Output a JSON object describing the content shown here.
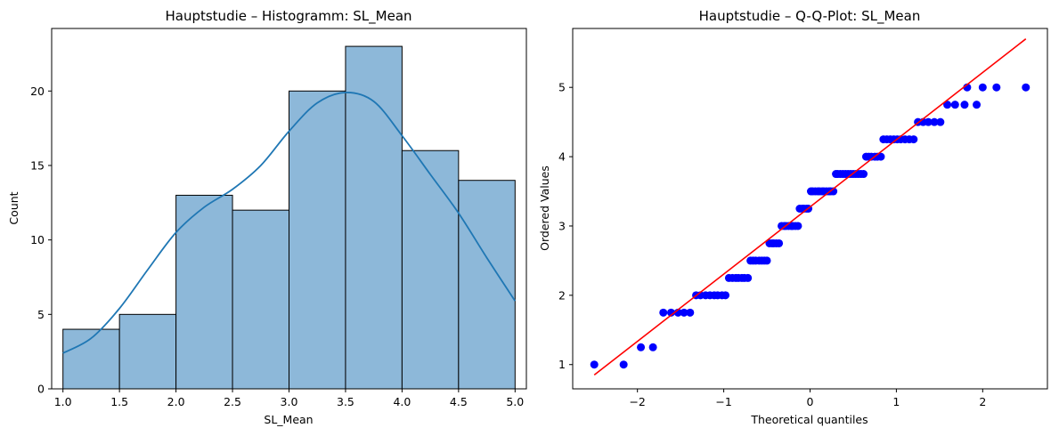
{
  "chart_data": [
    {
      "type": "bar",
      "title": "Hauptstudie – Histogramm: SL_Mean",
      "xlabel": "SL_Mean",
      "ylabel": "Count",
      "xlim": [
        0.9,
        5.1
      ],
      "ylim": [
        0,
        24.2
      ],
      "x_ticks": [
        1.0,
        1.5,
        2.0,
        2.5,
        3.0,
        3.5,
        4.0,
        4.5,
        5.0
      ],
      "x_tick_labels": [
        "1.0",
        "1.5",
        "2.0",
        "2.5",
        "3.0",
        "3.5",
        "4.0",
        "4.5",
        "5.0"
      ],
      "y_ticks": [
        0,
        5,
        10,
        15,
        20
      ],
      "y_tick_labels": [
        "0",
        "5",
        "10",
        "15",
        "20"
      ],
      "bins": [
        {
          "x0": 1.0,
          "x1": 1.5,
          "count": 4
        },
        {
          "x0": 1.5,
          "x1": 2.0,
          "count": 5
        },
        {
          "x0": 2.0,
          "x1": 2.5,
          "count": 13
        },
        {
          "x0": 2.5,
          "x1": 3.0,
          "count": 12
        },
        {
          "x0": 3.0,
          "x1": 3.5,
          "count": 20
        },
        {
          "x0": 3.5,
          "x1": 4.0,
          "count": 23
        },
        {
          "x0": 4.0,
          "x1": 4.5,
          "count": 16
        },
        {
          "x0": 4.5,
          "x1": 5.0,
          "count": 14
        }
      ],
      "kde": [
        [
          1.0,
          2.4
        ],
        [
          1.25,
          3.4
        ],
        [
          1.5,
          5.4
        ],
        [
          1.75,
          8.0
        ],
        [
          2.0,
          10.5
        ],
        [
          2.25,
          12.2
        ],
        [
          2.5,
          13.4
        ],
        [
          2.75,
          15.0
        ],
        [
          3.0,
          17.3
        ],
        [
          3.25,
          19.2
        ],
        [
          3.5,
          19.9
        ],
        [
          3.75,
          19.3
        ],
        [
          4.0,
          17.0
        ],
        [
          4.25,
          14.4
        ],
        [
          4.5,
          11.8
        ],
        [
          4.75,
          8.8
        ],
        [
          5.0,
          5.9
        ]
      ],
      "bar_color": "#8db8d9",
      "bar_edge_color": "#000000",
      "kde_color": "#1f77b4",
      "grid": false
    },
    {
      "type": "scatter",
      "title": "Hauptstudie – Q-Q-Plot: SL_Mean",
      "xlabel": "Theoretical quantiles",
      "ylabel": "Ordered Values",
      "xlim": [
        -2.75,
        2.75
      ],
      "ylim": [
        0.65,
        5.85
      ],
      "x_ticks": [
        -2,
        -1,
        0,
        1,
        2
      ],
      "x_tick_labels": [
        "−2",
        "−1",
        "0",
        "1",
        "2"
      ],
      "y_ticks": [
        1,
        2,
        3,
        4,
        5
      ],
      "y_tick_labels": [
        "1",
        "2",
        "3",
        "4",
        "5"
      ],
      "points": [
        [
          -2.5,
          1.0
        ],
        [
          -2.16,
          1.0
        ],
        [
          -1.96,
          1.25
        ],
        [
          -1.82,
          1.25
        ],
        [
          -1.7,
          1.75
        ],
        [
          -1.61,
          1.75
        ],
        [
          -1.53,
          1.75
        ],
        [
          -1.46,
          1.75
        ],
        [
          -1.39,
          1.75
        ],
        [
          -1.32,
          2.0
        ],
        [
          -1.27,
          2.0
        ],
        [
          -1.21,
          2.0
        ],
        [
          -1.16,
          2.0
        ],
        [
          -1.11,
          2.0
        ],
        [
          -1.07,
          2.0
        ],
        [
          -1.02,
          2.0
        ],
        [
          -0.98,
          2.0
        ],
        [
          -0.94,
          2.25
        ],
        [
          -0.9,
          2.25
        ],
        [
          -0.86,
          2.25
        ],
        [
          -0.83,
          2.25
        ],
        [
          -0.79,
          2.25
        ],
        [
          -0.76,
          2.25
        ],
        [
          -0.72,
          2.25
        ],
        [
          -0.69,
          2.5
        ],
        [
          -0.66,
          2.5
        ],
        [
          -0.63,
          2.5
        ],
        [
          -0.59,
          2.5
        ],
        [
          -0.56,
          2.5
        ],
        [
          -0.53,
          2.5
        ],
        [
          -0.5,
          2.5
        ],
        [
          -0.47,
          2.75
        ],
        [
          -0.44,
          2.75
        ],
        [
          -0.42,
          2.75
        ],
        [
          -0.39,
          2.75
        ],
        [
          -0.36,
          2.75
        ],
        [
          -0.33,
          3.0
        ],
        [
          -0.3,
          3.0
        ],
        [
          -0.28,
          3.0
        ],
        [
          -0.25,
          3.0
        ],
        [
          -0.22,
          3.0
        ],
        [
          -0.2,
          3.0
        ],
        [
          -0.17,
          3.0
        ],
        [
          -0.14,
          3.0
        ],
        [
          -0.12,
          3.25
        ],
        [
          -0.09,
          3.25
        ],
        [
          -0.07,
          3.25
        ],
        [
          -0.04,
          3.25
        ],
        [
          -0.02,
          3.25
        ],
        [
          0.01,
          3.5
        ],
        [
          0.03,
          3.5
        ],
        [
          0.06,
          3.5
        ],
        [
          0.09,
          3.5
        ],
        [
          0.11,
          3.5
        ],
        [
          0.14,
          3.5
        ],
        [
          0.16,
          3.5
        ],
        [
          0.19,
          3.5
        ],
        [
          0.22,
          3.5
        ],
        [
          0.24,
          3.5
        ],
        [
          0.27,
          3.5
        ],
        [
          0.3,
          3.75
        ],
        [
          0.32,
          3.75
        ],
        [
          0.35,
          3.75
        ],
        [
          0.38,
          3.75
        ],
        [
          0.41,
          3.75
        ],
        [
          0.44,
          3.75
        ],
        [
          0.47,
          3.75
        ],
        [
          0.5,
          3.75
        ],
        [
          0.53,
          3.75
        ],
        [
          0.56,
          3.75
        ],
        [
          0.59,
          3.75
        ],
        [
          0.62,
          3.75
        ],
        [
          0.65,
          4.0
        ],
        [
          0.68,
          4.0
        ],
        [
          0.71,
          4.0
        ],
        [
          0.75,
          4.0
        ],
        [
          0.78,
          4.0
        ],
        [
          0.82,
          4.0
        ],
        [
          0.85,
          4.25
        ],
        [
          0.89,
          4.25
        ],
        [
          0.93,
          4.25
        ],
        [
          0.97,
          4.25
        ],
        [
          1.01,
          4.25
        ],
        [
          1.05,
          4.25
        ],
        [
          1.1,
          4.25
        ],
        [
          1.15,
          4.25
        ],
        [
          1.2,
          4.25
        ],
        [
          1.25,
          4.5
        ],
        [
          1.31,
          4.5
        ],
        [
          1.37,
          4.5
        ],
        [
          1.44,
          4.5
        ],
        [
          1.51,
          4.5
        ],
        [
          1.59,
          4.75
        ],
        [
          1.68,
          4.75
        ],
        [
          1.79,
          4.75
        ],
        [
          1.93,
          4.75
        ],
        [
          2.0,
          5.0
        ],
        [
          2.16,
          5.0
        ],
        [
          2.5,
          5.0
        ],
        [
          1.82,
          5.0
        ]
      ],
      "fit_line": {
        "x": [
          -2.5,
          2.5
        ],
        "y": [
          0.85,
          5.7
        ]
      },
      "point_color": "#0000ff",
      "line_color": "#ff0000",
      "grid": false
    }
  ]
}
